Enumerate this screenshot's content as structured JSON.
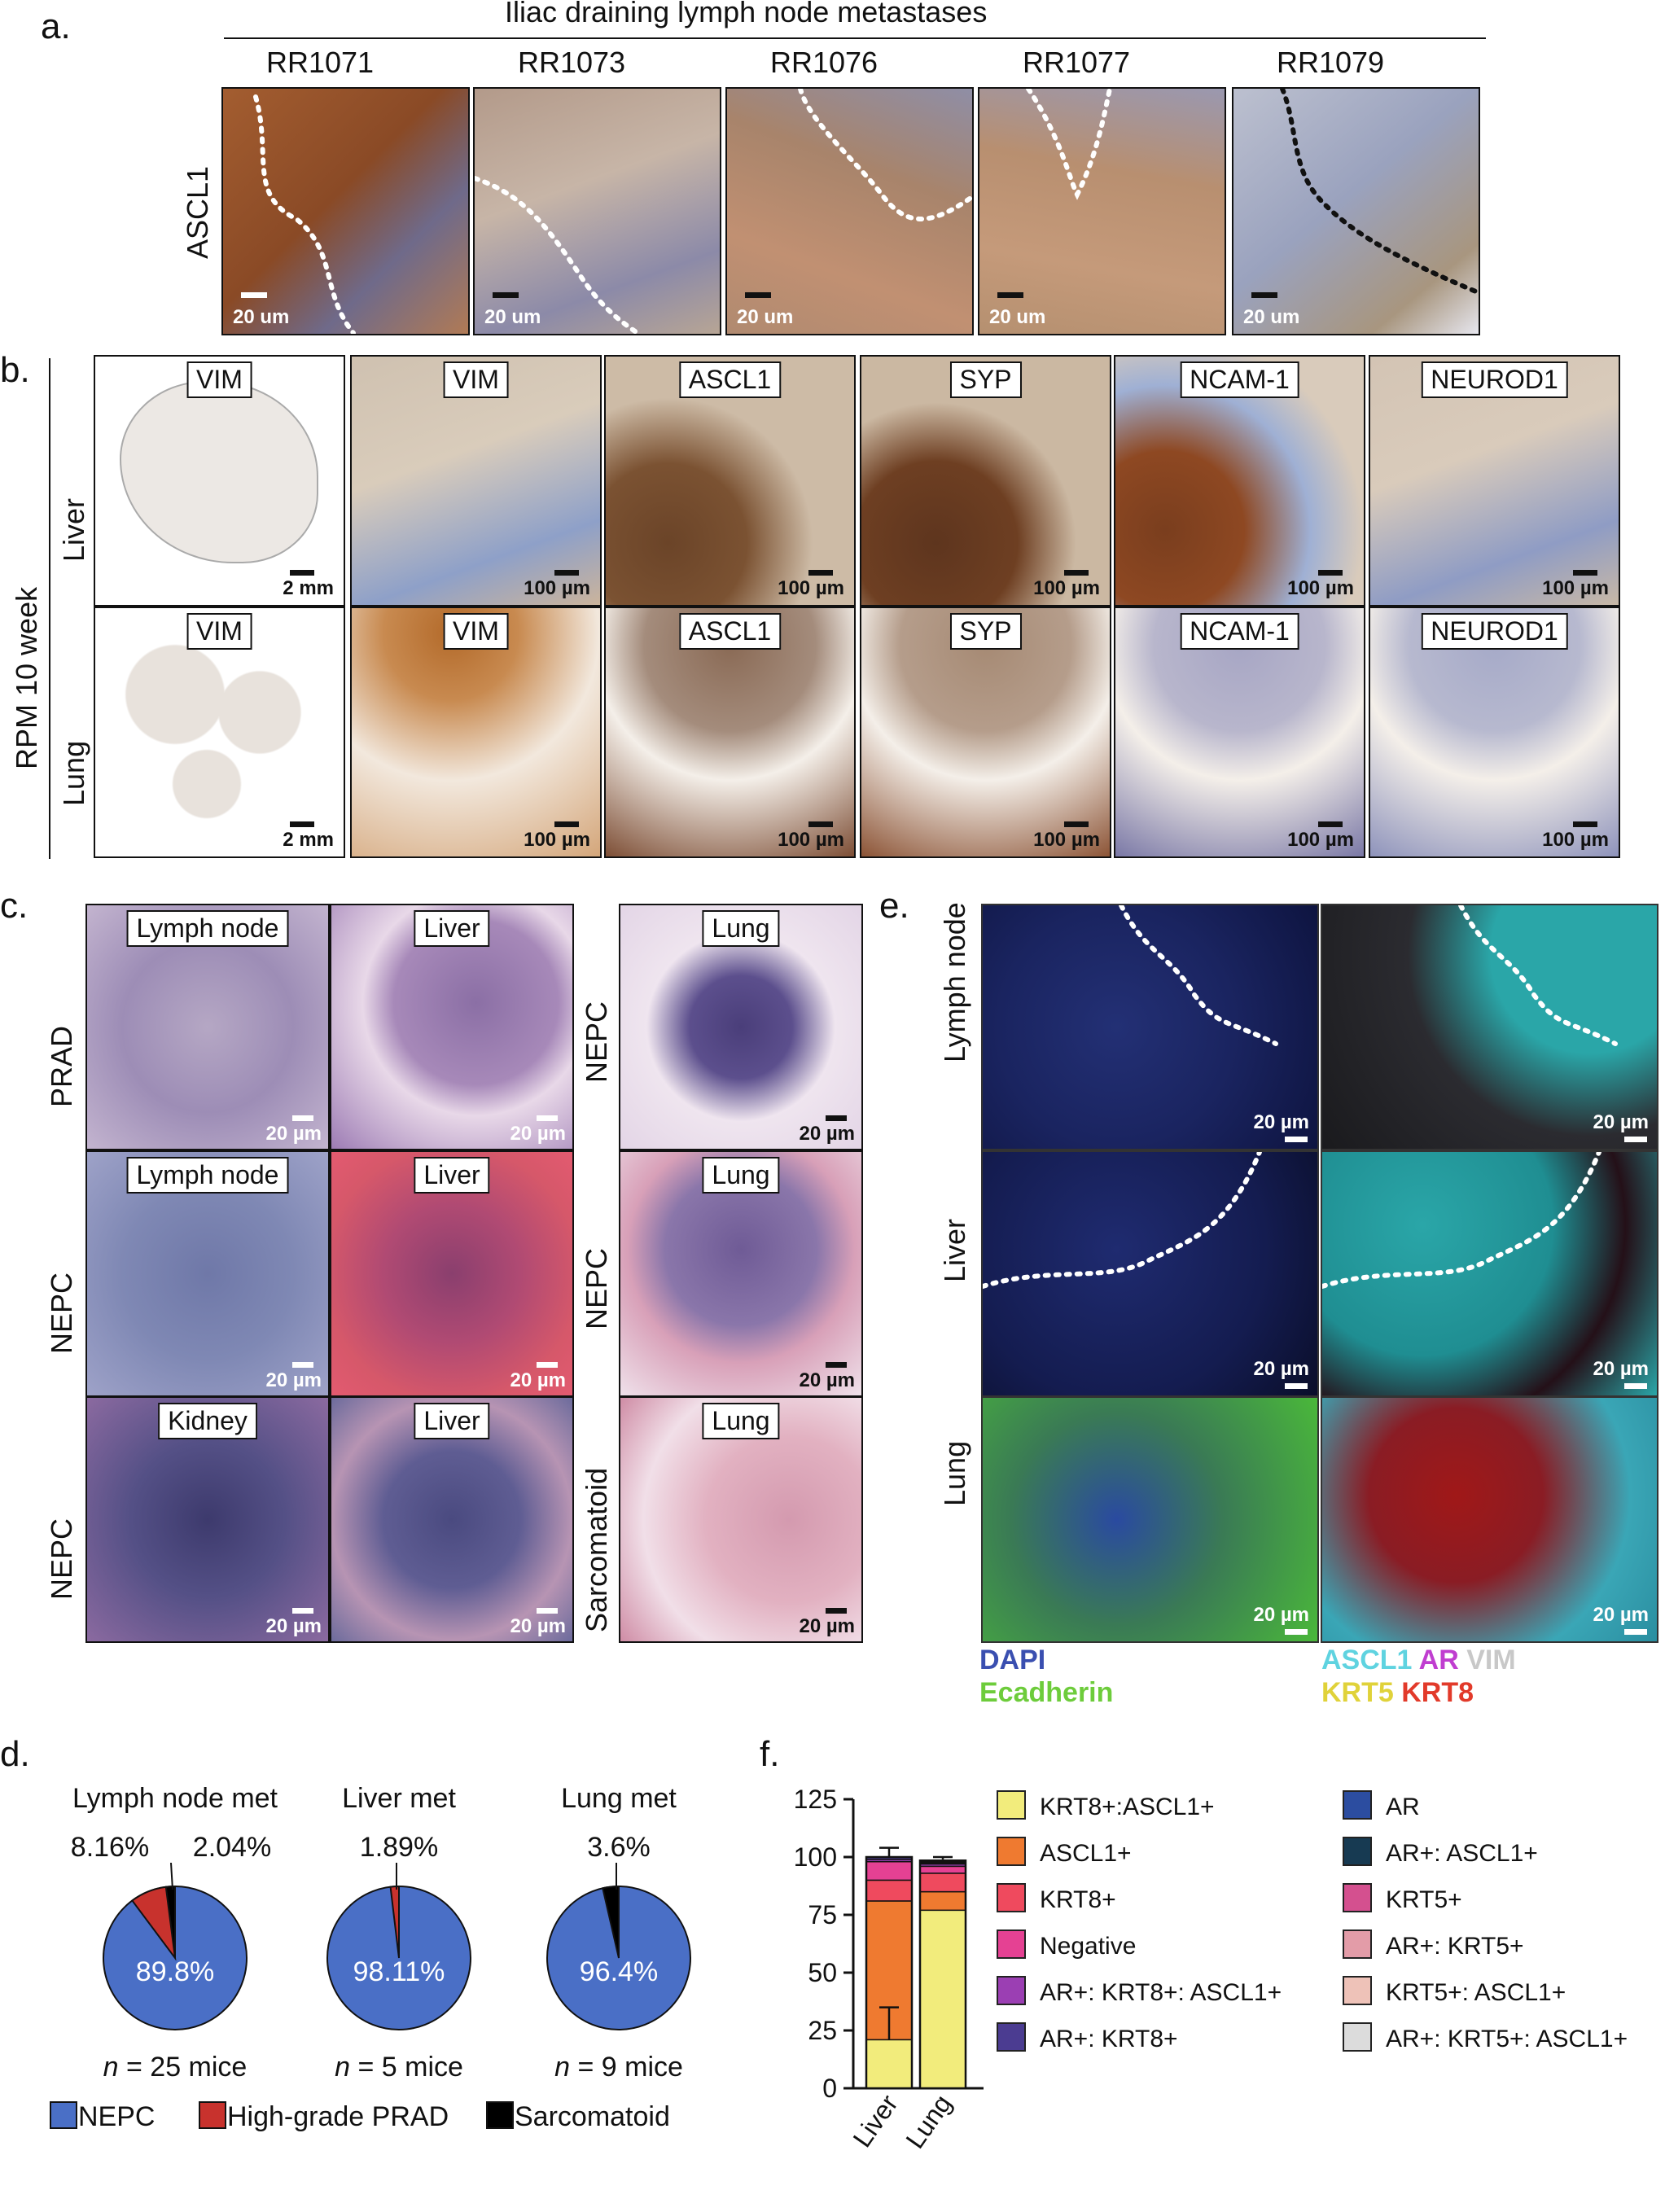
{
  "panel_a": {
    "letter": "a.",
    "title": "Iliac draining lymph node metastases",
    "row_label": "ASCL1",
    "samples": [
      "RR1071",
      "RR1073",
      "RR1076",
      "RR1077",
      "RR1079"
    ],
    "scale": "20 um"
  },
  "panel_b": {
    "letter": "b.",
    "group_label": "RPM 10 week",
    "rows": [
      "Liver",
      "Lung"
    ],
    "stains": [
      "VIM",
      "VIM",
      "ASCL1",
      "SYP",
      "NCAM-1",
      "NEUROD1"
    ],
    "scale_low": "2 mm",
    "scale_high": "100 µm"
  },
  "panel_c": {
    "letter": "c.",
    "row_labels": [
      "PRAD",
      "NEPC",
      "NEPC"
    ],
    "right_labels": [
      "NEPC",
      "NEPC",
      "Sarcomatoid"
    ],
    "tiles": [
      [
        "Lymph node",
        "Liver",
        "Lung"
      ],
      [
        "Lymph node",
        "Liver",
        "Lung"
      ],
      [
        "Kidney",
        "Liver",
        "Lung"
      ]
    ],
    "scale": "20 µm"
  },
  "panel_d": {
    "letter": "d.",
    "legend": [
      "NEPC",
      "High-grade PRAD",
      "Sarcomatoid"
    ],
    "pies": [
      {
        "title": "Lymph node met",
        "n": "= 25 mice",
        "main": "89.8%",
        "small1": "8.16%",
        "small2": "2.04%"
      },
      {
        "title": "Liver met",
        "n": "= 5 mice",
        "main": "98.11%",
        "small1": "1.89%"
      },
      {
        "title": "Lung met",
        "n": "= 9 mice",
        "main": "96.4%",
        "small1": "3.6%"
      }
    ],
    "n_italic": "n"
  },
  "panel_e": {
    "letter": "e.",
    "rows": [
      "Lymph node",
      "Liver",
      "Lung"
    ],
    "scale": "20 µm",
    "legend_left": [
      "DAPI",
      "Ecadherin"
    ],
    "legend_right_1": [
      "ASCL1",
      "AR",
      "VIM"
    ],
    "legend_right_2": [
      "KRT5",
      "KRT8"
    ]
  },
  "panel_f": {
    "letter": "f."
  },
  "colors": {
    "nepc": "#4a6fc6",
    "prad": "#c8322d",
    "sarc": "#000000",
    "dapi": "#3a4fb0",
    "ecad": "#6dcc3b",
    "ascl1": "#5fd3e0",
    "ar": "#c03ed0",
    "vim": "#c8c8c8",
    "krt5": "#e0d23a",
    "krt8": "#e23a2a"
  },
  "chart_data": [
    {
      "type": "pie",
      "title": "Lymph node met",
      "labels": [
        "NEPC",
        "High-grade PRAD",
        "Sarcomatoid"
      ],
      "values": [
        89.8,
        8.16,
        2.04
      ]
    },
    {
      "type": "pie",
      "title": "Liver met",
      "labels": [
        "NEPC",
        "High-grade PRAD"
      ],
      "values": [
        98.11,
        1.89
      ]
    },
    {
      "type": "pie",
      "title": "Lung met",
      "labels": [
        "NEPC",
        "Sarcomatoid"
      ],
      "values": [
        96.4,
        3.6
      ]
    },
    {
      "type": "bar",
      "stacked": true,
      "categories": [
        "Liver",
        "Lung"
      ],
      "ylim": [
        0,
        125
      ],
      "yticks": [
        0,
        25,
        50,
        75,
        100,
        125
      ],
      "series": [
        {
          "name": "KRT8+:ASCL1+",
          "color": "#f2ec7c",
          "values": [
            21,
            77
          ]
        },
        {
          "name": "ASCL1+",
          "color": "#ef7a30",
          "values": [
            60,
            8
          ]
        },
        {
          "name": "KRT8+",
          "color": "#ef4a5e",
          "values": [
            9,
            8
          ]
        },
        {
          "name": "Negative",
          "color": "#e54193",
          "values": [
            8,
            3
          ]
        },
        {
          "name": "AR+: KRT8+: ASCL1+",
          "color": "#9b3fb3",
          "values": [
            1,
            1
          ]
        },
        {
          "name": "AR+: KRT8+",
          "color": "#4b3c91",
          "values": [
            1,
            0.5
          ]
        },
        {
          "name": "AR",
          "color": "#2c4da0",
          "values": [
            0,
            0.5
          ]
        },
        {
          "name": "AR+: ASCL1+",
          "color": "#173a52",
          "values": [
            0,
            0.5
          ]
        },
        {
          "name": "KRT5+",
          "color": "#d4508f",
          "values": [
            0,
            0
          ]
        },
        {
          "name": "AR+: KRT5+",
          "color": "#e39ca8",
          "values": [
            0,
            0
          ]
        },
        {
          "name": "KRT5+: ASCL1+",
          "color": "#eec2b8",
          "values": [
            0,
            0
          ]
        },
        {
          "name": "AR+: KRT5+: ASCL1+",
          "color": "#dcdcdc",
          "values": [
            0,
            0
          ]
        }
      ],
      "error_bars": {
        "Liver": [
          14,
          4
        ],
        "Lung": [
          0,
          1
        ]
      },
      "xlabel": "",
      "ylabel": ""
    }
  ]
}
